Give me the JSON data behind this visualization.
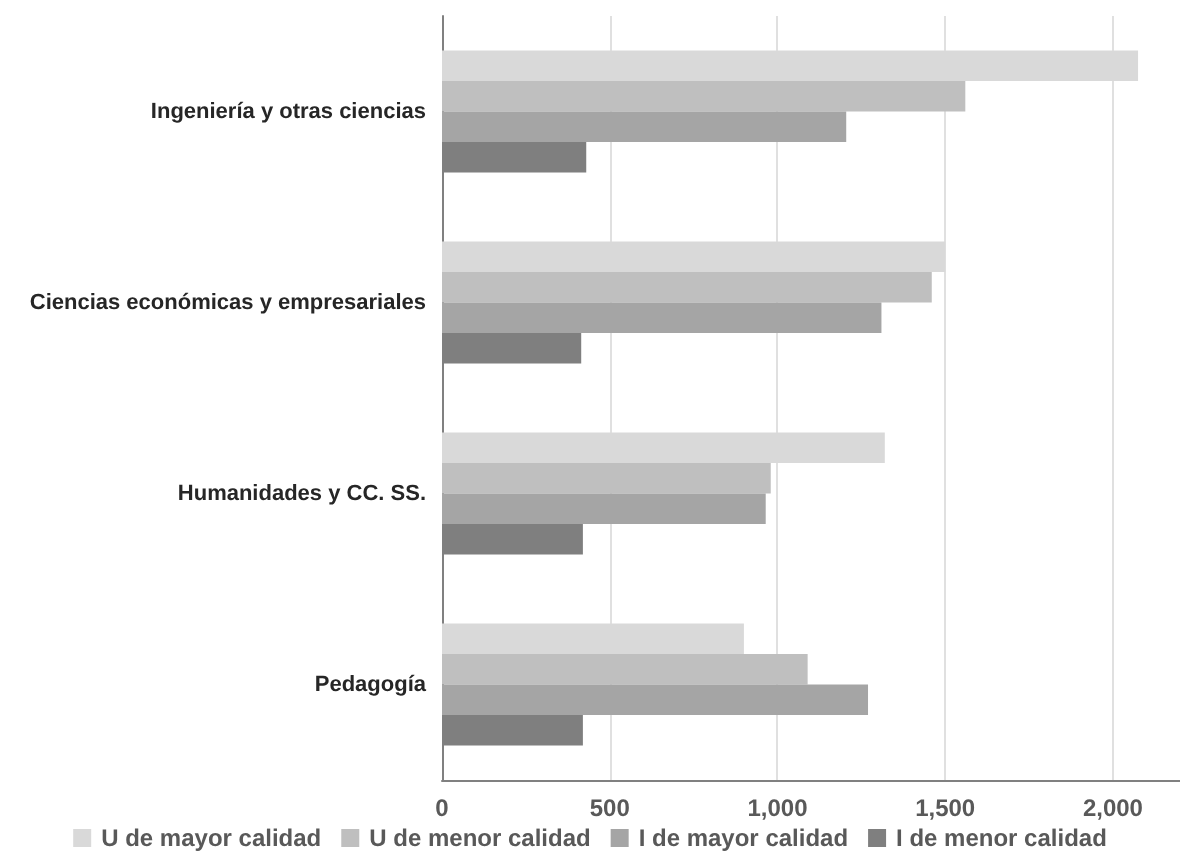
{
  "chart_data": {
    "type": "bar",
    "orientation": "horizontal",
    "categories": [
      "Ingeniería y otras ciencias",
      "Ciencias económicas y empresariales",
      "Humanidades y CC. SS.",
      "Pedagogía"
    ],
    "series": [
      {
        "name": "U de mayor calidad",
        "color": "#d9d9d9",
        "values": [
          2075,
          1500,
          1320,
          900
        ]
      },
      {
        "name": "U de menor calidad",
        "color": "#bfbfbf",
        "values": [
          1560,
          1460,
          980,
          1090
        ]
      },
      {
        "name": "I de mayor calidad",
        "color": "#a5a5a5",
        "values": [
          1205,
          1310,
          965,
          1270
        ]
      },
      {
        "name": "I de menor calidad",
        "color": "#7f7f7f",
        "values": [
          430,
          415,
          420,
          420
        ]
      }
    ],
    "xlim": [
      0,
      2200
    ],
    "xticks": [
      0,
      500,
      {
        "value": 1000,
        "label": "1,000"
      },
      {
        "value": 1500,
        "label": "1,500"
      },
      {
        "value": 2000,
        "label": "2,000"
      }
    ],
    "grid": "x",
    "legend": "bottom"
  }
}
